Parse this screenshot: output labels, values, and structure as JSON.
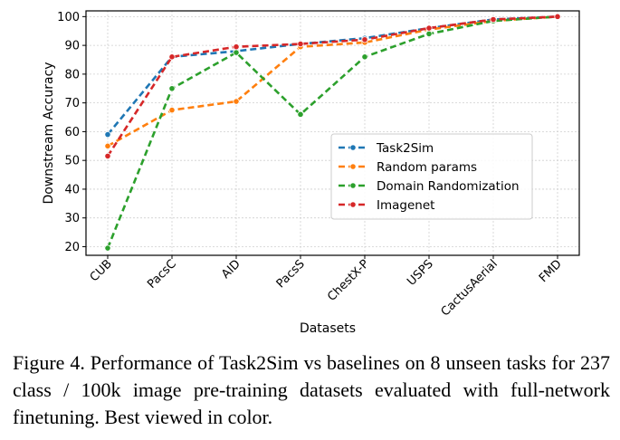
{
  "chart_data": {
    "type": "line",
    "categories": [
      "CUB",
      "PacsC",
      "AID",
      "PacsS",
      "ChestX-P",
      "USPS",
      "CactusAerial",
      "FMD"
    ],
    "xlabel": "Datasets",
    "ylabel": "Downstream Accuracy",
    "ylim": [
      17,
      102
    ],
    "yticks": [
      20,
      30,
      40,
      50,
      60,
      70,
      80,
      90,
      100
    ],
    "grid": true,
    "legend_position": "lower-right",
    "series": [
      {
        "name": "Task2Sim",
        "color": "#1f77b4",
        "values": [
          59,
          86,
          88,
          90.5,
          92.5,
          96,
          99,
          100
        ]
      },
      {
        "name": "Random params",
        "color": "#ff7f0e",
        "values": [
          55,
          67.5,
          70.5,
          89.5,
          91,
          95.5,
          98.5,
          100
        ]
      },
      {
        "name": "Domain Randomization",
        "color": "#2ca02c",
        "values": [
          19.5,
          75,
          87.5,
          66,
          86,
          94,
          98.5,
          100
        ]
      },
      {
        "name": "Imagenet",
        "color": "#d62728",
        "values": [
          51.5,
          86,
          89.5,
          90.5,
          92,
          96,
          99,
          100
        ]
      }
    ]
  },
  "caption": "Figure 4. Performance of Task2Sim vs baselines on 8 unseen tasks for 237 class / 100k image pre-training datasets evaluated with full-network finetuning. Best viewed in color."
}
